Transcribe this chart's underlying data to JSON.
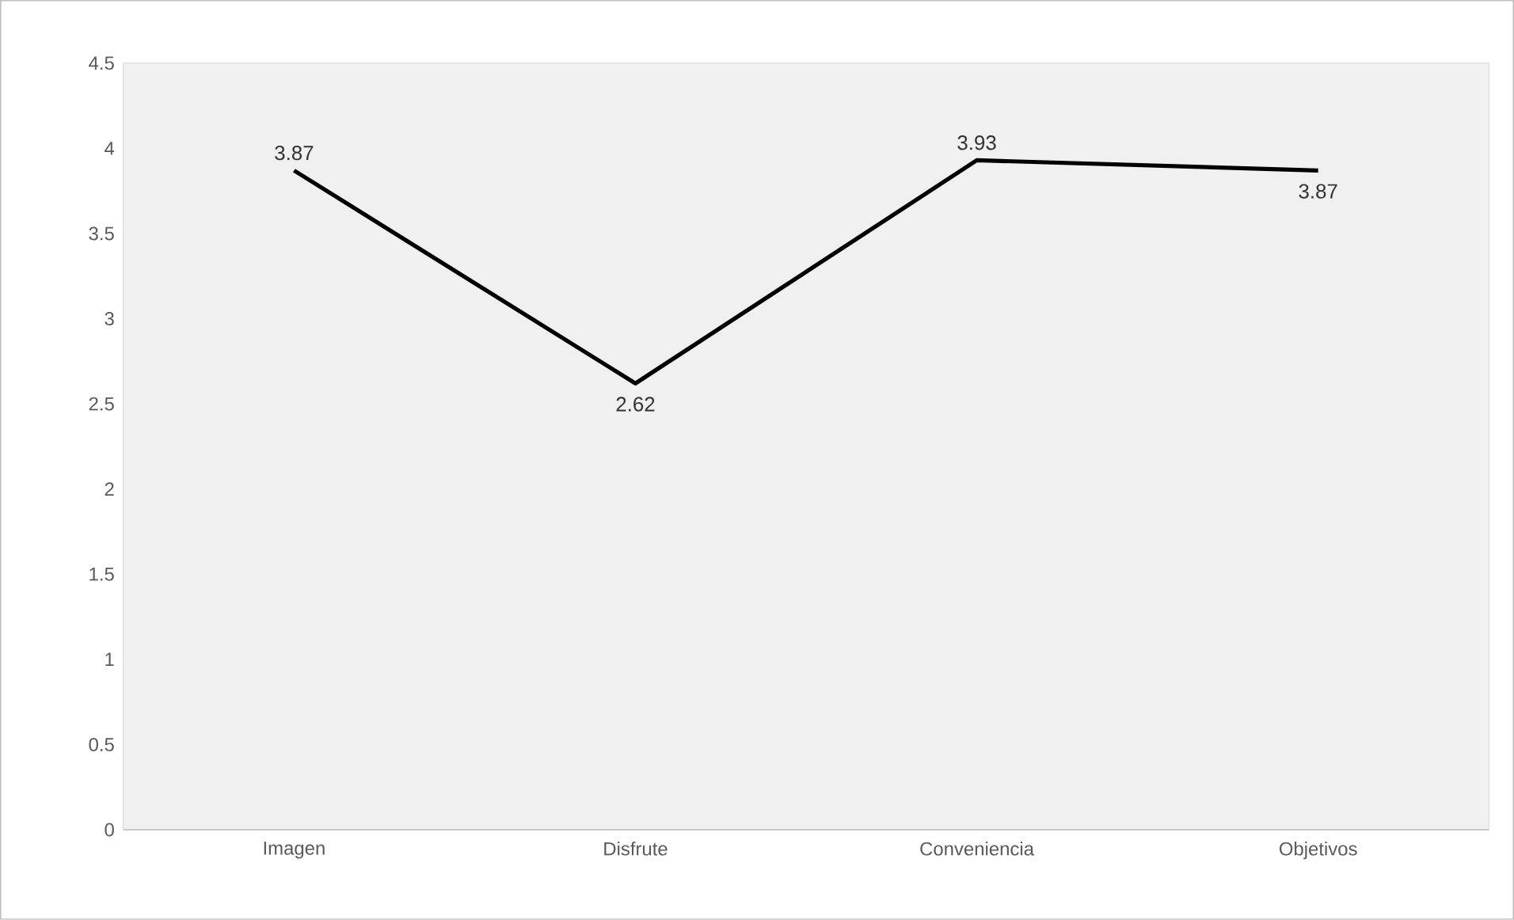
{
  "chart_data": {
    "type": "line",
    "categories": [
      "Imagen",
      "Disfrute",
      "Conveniencia",
      "Objetivos"
    ],
    "series": [
      {
        "color": "#000000",
        "values": [
          3.87,
          2.62,
          3.93,
          3.87
        ]
      }
    ],
    "ylim": [
      0,
      4.5
    ],
    "yticks": [
      0,
      0.5,
      1,
      1.5,
      2,
      2.5,
      3,
      3.5,
      4,
      4.5
    ],
    "grid": true,
    "data_labels": true,
    "marker": "none",
    "line_style": "solid"
  }
}
